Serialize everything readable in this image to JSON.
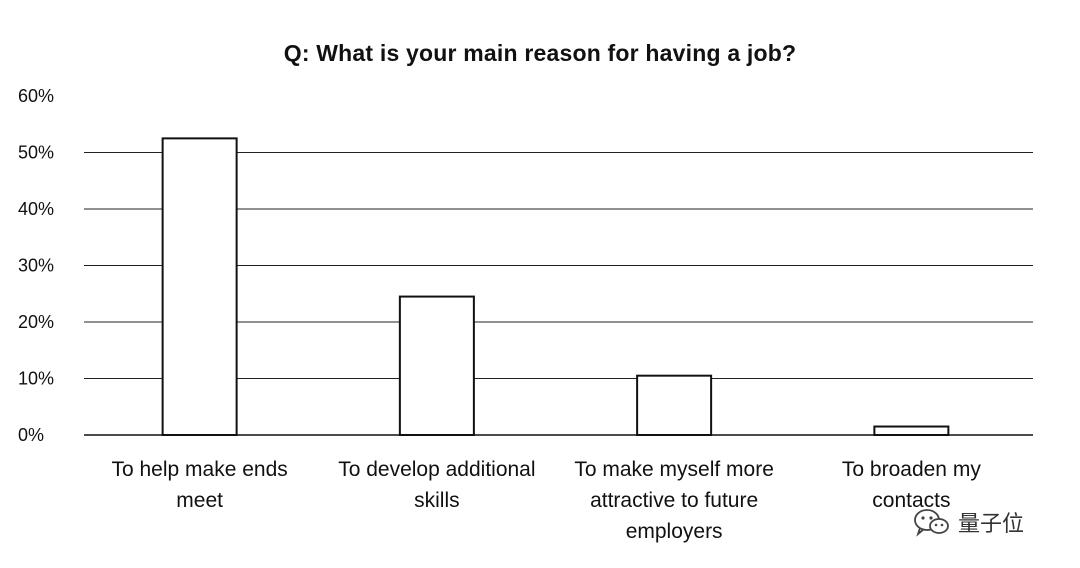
{
  "chart_data": {
    "type": "bar",
    "title": "Q: What is your main reason for having a job?",
    "categories": [
      [
        "To help make ends",
        "meet"
      ],
      [
        "To develop additional",
        "skills"
      ],
      [
        "To make myself more",
        "attractive to future",
        "employers"
      ],
      [
        "To broaden my",
        "contacts"
      ]
    ],
    "values": [
      52.5,
      24.5,
      10.5,
      1.5
    ],
    "yticks": [
      "0%",
      "10%",
      "20%",
      "30%",
      "40%",
      "50%",
      "60%"
    ],
    "ylim": [
      0,
      60
    ],
    "xlabel": "",
    "ylabel": "",
    "grid": true,
    "colors": {
      "bar_fill": "#ffffff",
      "bar_stroke": "#111111"
    }
  },
  "watermark": {
    "text": "量子位"
  }
}
